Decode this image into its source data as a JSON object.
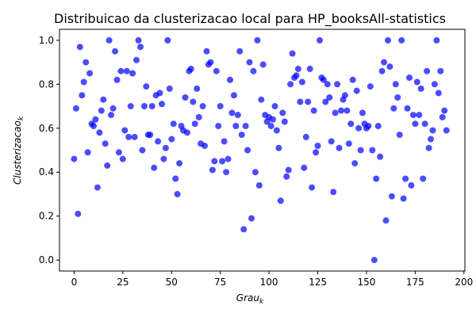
{
  "chart_data": {
    "type": "scatter",
    "title": "Distribuicao da clusterizacao local para HP_booksAll-statistics",
    "xlabel": "Grau",
    "xlabel_sub": "k",
    "ylabel": "Clusterizacao",
    "ylabel_sub": "k",
    "xlim": [
      -7.5,
      200.5
    ],
    "ylim": [
      -0.05,
      1.05
    ],
    "xticks": [
      0,
      25,
      50,
      75,
      100,
      125,
      150,
      175,
      200
    ],
    "yticks": [
      0.0,
      0.2,
      0.4,
      0.6,
      0.8,
      1.0
    ],
    "ytick_labels": [
      "0.0",
      "0.2",
      "0.4",
      "0.6",
      "0.8",
      "1.0"
    ],
    "grid": false,
    "marker_color": "#0000ff",
    "points": [
      [
        0,
        0.46
      ],
      [
        1,
        0.69
      ],
      [
        2,
        0.21
      ],
      [
        3,
        0.97
      ],
      [
        4,
        0.75
      ],
      [
        5,
        0.81
      ],
      [
        6,
        0.9
      ],
      [
        7,
        0.49
      ],
      [
        8,
        0.85
      ],
      [
        9,
        0.62
      ],
      [
        10,
        0.61
      ],
      [
        11,
        0.64
      ],
      [
        12,
        0.33
      ],
      [
        13,
        0.58
      ],
      [
        14,
        0.68
      ],
      [
        15,
        0.73
      ],
      [
        16,
        0.53
      ],
      [
        17,
        0.43
      ],
      [
        18,
        1.0
      ],
      [
        19,
        0.66
      ],
      [
        20,
        0.69
      ],
      [
        21,
        0.95
      ],
      [
        22,
        0.82
      ],
      [
        23,
        0.49
      ],
      [
        24,
        0.86
      ],
      [
        25,
        0.46
      ],
      [
        26,
        0.59
      ],
      [
        27,
        0.86
      ],
      [
        28,
        0.56
      ],
      [
        29,
        0.7
      ],
      [
        30,
        0.85
      ],
      [
        31,
        0.56
      ],
      [
        32,
        0.91
      ],
      [
        33,
        1.0
      ],
      [
        34,
        0.97
      ],
      [
        35,
        0.5
      ],
      [
        36,
        0.7
      ],
      [
        37,
        0.79
      ],
      [
        38,
        0.57
      ],
      [
        39,
        0.57
      ],
      [
        40,
        0.7
      ],
      [
        41,
        0.42
      ],
      [
        42,
        0.75
      ],
      [
        43,
        0.54
      ],
      [
        44,
        0.76
      ],
      [
        45,
        0.71
      ],
      [
        46,
        0.46
      ],
      [
        47,
        0.51
      ],
      [
        48,
        1.0
      ],
      [
        49,
        0.78
      ],
      [
        50,
        0.55
      ],
      [
        51,
        0.62
      ],
      [
        52,
        0.37
      ],
      [
        53,
        0.3
      ],
      [
        54,
        0.44
      ],
      [
        55,
        0.61
      ],
      [
        56,
        0.59
      ],
      [
        57,
        0.74
      ],
      [
        58,
        0.58
      ],
      [
        59,
        0.86
      ],
      [
        60,
        0.87
      ],
      [
        61,
        0.72
      ],
      [
        62,
        0.62
      ],
      [
        63,
        0.78
      ],
      [
        64,
        0.65
      ],
      [
        65,
        0.53
      ],
      [
        66,
        0.7
      ],
      [
        67,
        0.52
      ],
      [
        68,
        0.95
      ],
      [
        69,
        0.89
      ],
      [
        70,
        0.9
      ],
      [
        71,
        0.41
      ],
      [
        72,
        0.45
      ],
      [
        73,
        0.86
      ],
      [
        74,
        0.61
      ],
      [
        75,
        0.7
      ],
      [
        76,
        0.45
      ],
      [
        77,
        0.54
      ],
      [
        78,
        0.4
      ],
      [
        79,
        0.46
      ],
      [
        80,
        0.82
      ],
      [
        81,
        0.67
      ],
      [
        82,
        0.75
      ],
      [
        83,
        0.61
      ],
      [
        84,
        0.66
      ],
      [
        85,
        0.95
      ],
      [
        86,
        0.57
      ],
      [
        87,
        0.14
      ],
      [
        88,
        0.61
      ],
      [
        89,
        0.5
      ],
      [
        90,
        0.9
      ],
      [
        91,
        0.19
      ],
      [
        92,
        0.86
      ],
      [
        93,
        0.4
      ],
      [
        94,
        1.0
      ],
      [
        95,
        0.34
      ],
      [
        96,
        0.73
      ],
      [
        97,
        0.89
      ],
      [
        98,
        0.66
      ],
      [
        99,
        0.63
      ],
      [
        100,
        0.65
      ],
      [
        101,
        0.61
      ],
      [
        102,
        0.64
      ],
      [
        103,
        0.7
      ],
      [
        104,
        0.59
      ],
      [
        105,
        0.51
      ],
      [
        106,
        0.27
      ],
      [
        107,
        0.67
      ],
      [
        108,
        0.63
      ],
      [
        109,
        0.38
      ],
      [
        110,
        0.41
      ],
      [
        111,
        0.8
      ],
      [
        112,
        0.94
      ],
      [
        113,
        0.83
      ],
      [
        114,
        0.84
      ],
      [
        115,
        0.87
      ],
      [
        116,
        0.72
      ],
      [
        117,
        0.81
      ],
      [
        118,
        0.42
      ],
      [
        119,
        0.56
      ],
      [
        120,
        0.72
      ],
      [
        121,
        0.87
      ],
      [
        122,
        0.33
      ],
      [
        123,
        0.68
      ],
      [
        124,
        0.49
      ],
      [
        125,
        0.52
      ],
      [
        126,
        1.0
      ],
      [
        127,
        0.83
      ],
      [
        128,
        0.82
      ],
      [
        129,
        0.72
      ],
      [
        130,
        0.8
      ],
      [
        131,
        0.74
      ],
      [
        132,
        0.54
      ],
      [
        133,
        0.31
      ],
      [
        134,
        0.67
      ],
      [
        135,
        0.8
      ],
      [
        136,
        0.51
      ],
      [
        137,
        0.68
      ],
      [
        138,
        0.73
      ],
      [
        139,
        0.75
      ],
      [
        140,
        0.68
      ],
      [
        141,
        0.53
      ],
      [
        142,
        0.62
      ],
      [
        143,
        0.82
      ],
      [
        144,
        0.44
      ],
      [
        145,
        0.77
      ],
      [
        146,
        0.6
      ],
      [
        147,
        0.5
      ],
      [
        148,
        0.67
      ],
      [
        149,
        0.62
      ],
      [
        150,
        0.6
      ],
      [
        151,
        0.61
      ],
      [
        152,
        0.79
      ],
      [
        153,
        0.5
      ],
      [
        154,
        0.0
      ],
      [
        155,
        0.37
      ],
      [
        156,
        0.61
      ],
      [
        157,
        0.47
      ],
      [
        158,
        0.86
      ],
      [
        159,
        0.9
      ],
      [
        160,
        0.18
      ],
      [
        161,
        1.0
      ],
      [
        162,
        0.88
      ],
      [
        163,
        0.29
      ],
      [
        164,
        0.69
      ],
      [
        165,
        0.8
      ],
      [
        166,
        0.74
      ],
      [
        167,
        0.57
      ],
      [
        168,
        1.0
      ],
      [
        169,
        0.28
      ],
      [
        170,
        0.37
      ],
      [
        171,
        0.69
      ],
      [
        172,
        0.83
      ],
      [
        173,
        0.34
      ],
      [
        174,
        0.66
      ],
      [
        175,
        0.62
      ],
      [
        176,
        0.81
      ],
      [
        177,
        0.66
      ],
      [
        178,
        0.78
      ],
      [
        179,
        0.37
      ],
      [
        180,
        0.62
      ],
      [
        181,
        0.86
      ],
      [
        182,
        0.51
      ],
      [
        183,
        0.55
      ],
      [
        184,
        0.59
      ],
      [
        185,
        0.8
      ],
      [
        186,
        1.0
      ],
      [
        187,
        0.76
      ],
      [
        188,
        0.86
      ],
      [
        189,
        0.65
      ],
      [
        190,
        0.68
      ],
      [
        191,
        0.59
      ]
    ]
  }
}
